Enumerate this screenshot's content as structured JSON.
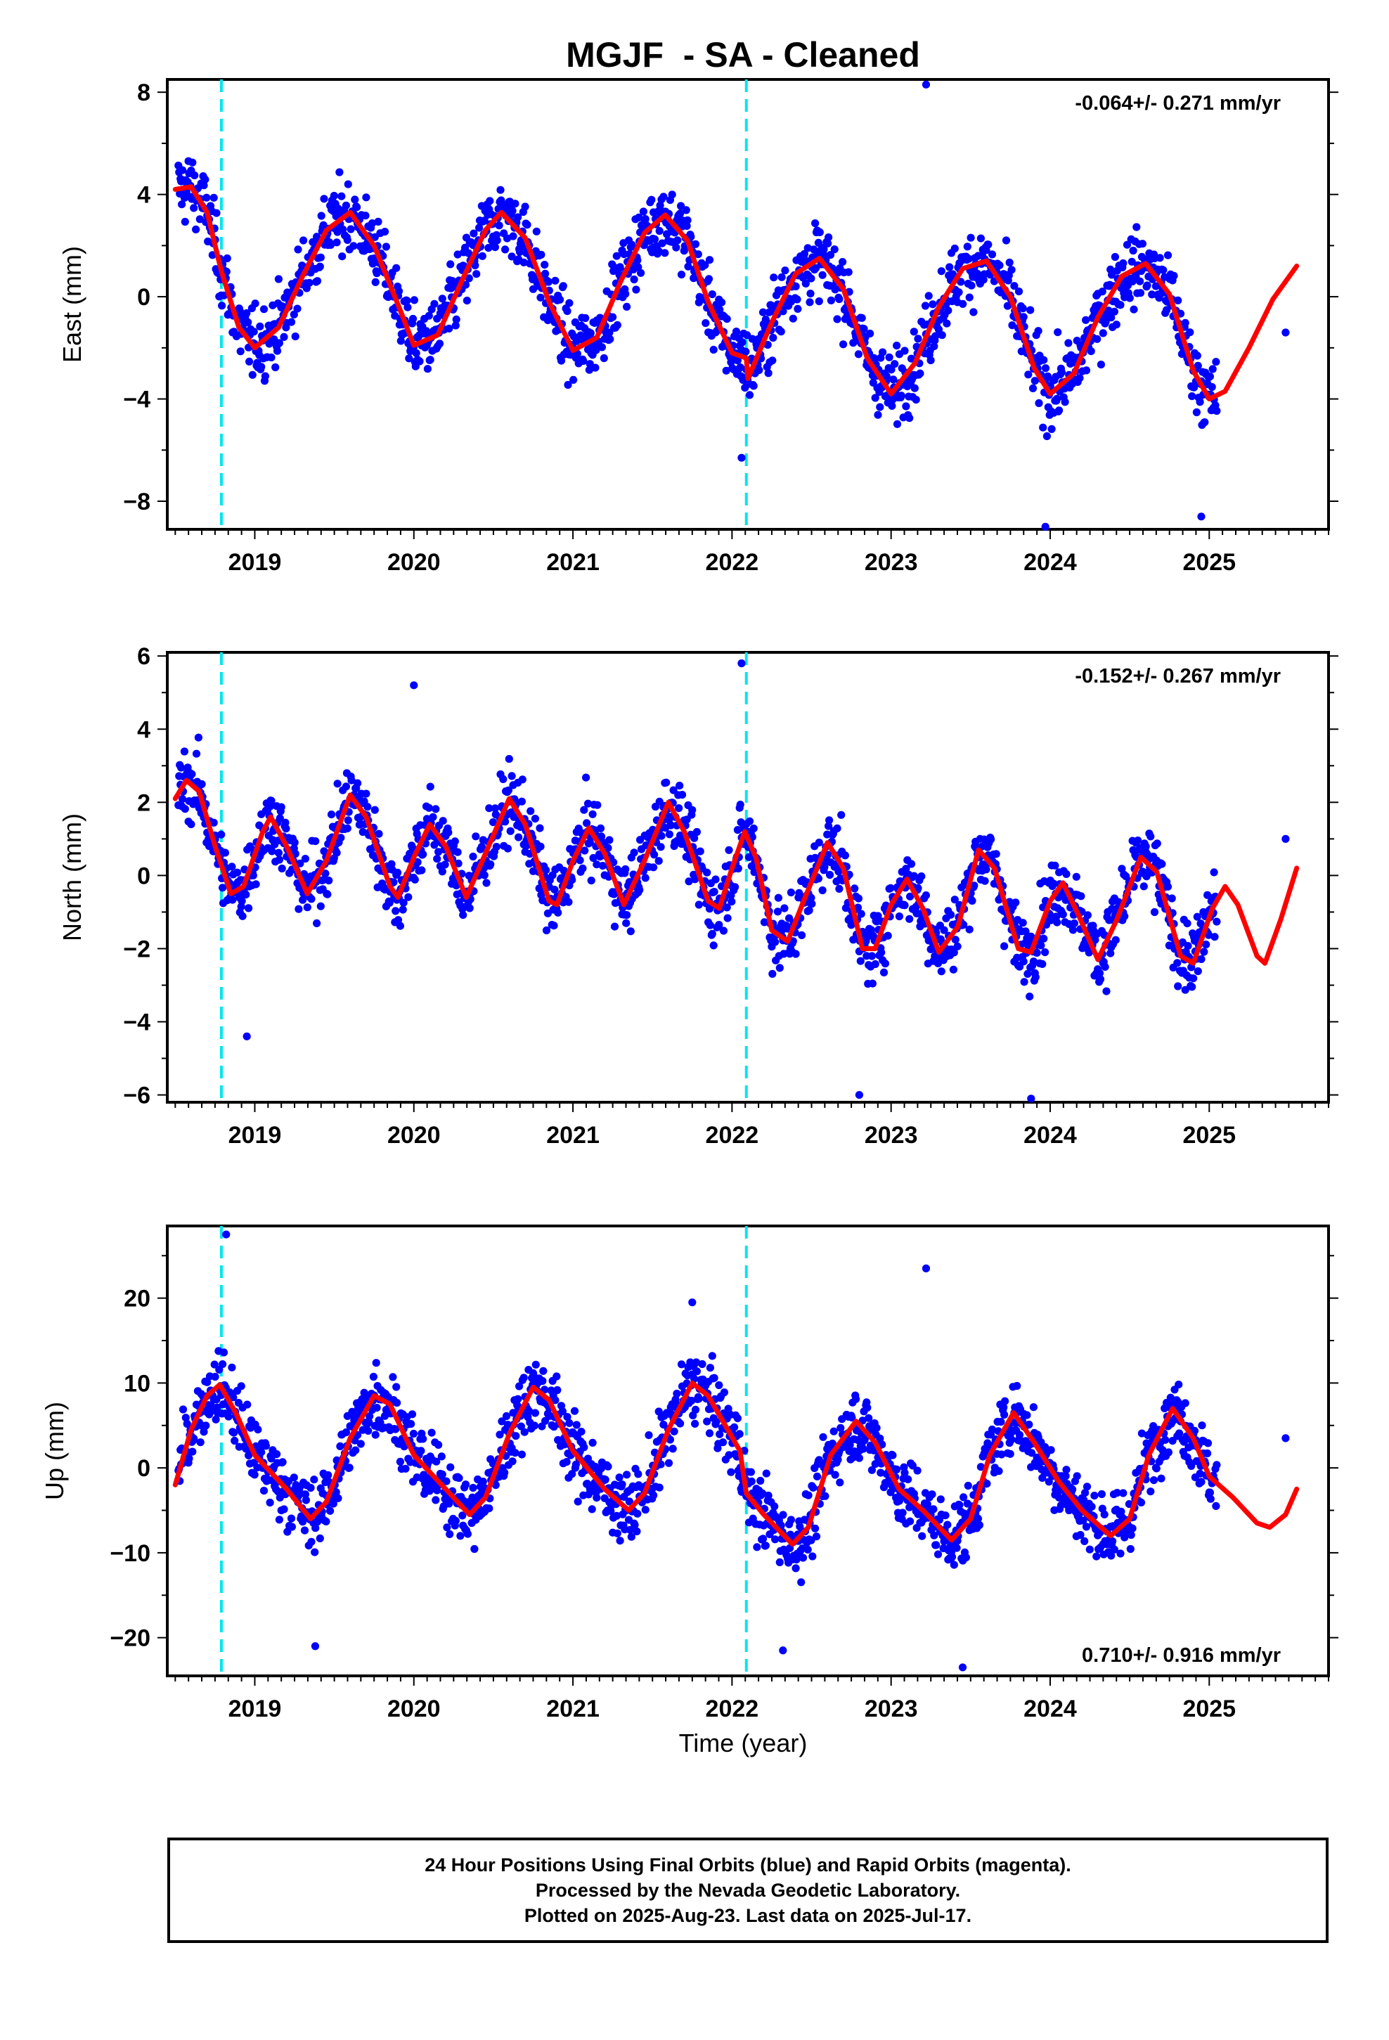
{
  "chart_data": {
    "type": "scatter",
    "title": "MGJF  - SA - Cleaned",
    "xlabel": "Time (year)",
    "xlim": [
      2018.45,
      2025.75
    ],
    "xticks": [
      "2019",
      "2020",
      "2021",
      "2022",
      "2023",
      "2024",
      "2025"
    ],
    "steps": [
      2018.79,
      2022.09
    ],
    "colors": {
      "points": "#0000ff",
      "fit": "#ff0000",
      "steps": "#00e5ee",
      "rapid": "#ff00ff"
    },
    "panels": [
      {
        "name": "east",
        "ylabel": "East (mm)",
        "ylim": [
          -9.1,
          8.5
        ],
        "yticks": [
          -8,
          -4,
          0,
          4,
          8
        ],
        "rate_text": "-0.064+/- 0.271 mm/yr",
        "rate_position": "top-right",
        "fit_points": [
          [
            2018.5,
            4.2
          ],
          [
            2018.6,
            4.3
          ],
          [
            2018.7,
            3.3
          ],
          [
            2018.79,
            1.0
          ],
          [
            2018.9,
            -1.2
          ],
          [
            2019.0,
            -2.0
          ],
          [
            2019.15,
            -1.2
          ],
          [
            2019.3,
            0.8
          ],
          [
            2019.45,
            2.6
          ],
          [
            2019.6,
            3.3
          ],
          [
            2019.75,
            2.0
          ],
          [
            2019.9,
            -0.3
          ],
          [
            2020.0,
            -1.9
          ],
          [
            2020.15,
            -1.5
          ],
          [
            2020.3,
            0.6
          ],
          [
            2020.45,
            2.6
          ],
          [
            2020.55,
            3.3
          ],
          [
            2020.7,
            2.3
          ],
          [
            2020.85,
            -0.2
          ],
          [
            2021.0,
            -2.1
          ],
          [
            2021.15,
            -1.6
          ],
          [
            2021.3,
            0.6
          ],
          [
            2021.45,
            2.5
          ],
          [
            2021.58,
            3.2
          ],
          [
            2021.72,
            2.2
          ],
          [
            2021.85,
            -0.2
          ],
          [
            2022.0,
            -2.2
          ],
          [
            2022.09,
            -2.4
          ],
          [
            2022.1,
            -3.2
          ],
          [
            2022.25,
            -1.0
          ],
          [
            2022.4,
            0.9
          ],
          [
            2022.55,
            1.5
          ],
          [
            2022.7,
            0.3
          ],
          [
            2022.85,
            -2.4
          ],
          [
            2023.0,
            -3.8
          ],
          [
            2023.15,
            -2.6
          ],
          [
            2023.3,
            -0.4
          ],
          [
            2023.45,
            1.1
          ],
          [
            2023.6,
            1.4
          ],
          [
            2023.75,
            0.0
          ],
          [
            2023.9,
            -2.8
          ],
          [
            2024.0,
            -3.8
          ],
          [
            2024.15,
            -3.0
          ],
          [
            2024.3,
            -0.8
          ],
          [
            2024.45,
            0.8
          ],
          [
            2024.6,
            1.3
          ],
          [
            2024.75,
            0.1
          ],
          [
            2024.9,
            -2.9
          ],
          [
            2025.0,
            -4.0
          ],
          [
            2025.1,
            -3.7
          ],
          [
            2025.25,
            -2.0
          ],
          [
            2025.4,
            -0.1
          ],
          [
            2025.55,
            1.2
          ]
        ],
        "outliers": [
          [
            2023.22,
            8.3
          ],
          [
            2025.48,
            -1.4
          ],
          [
            2023.97,
            -9.0
          ],
          [
            2024.95,
            -8.6
          ],
          [
            2022.06,
            -6.3
          ]
        ]
      },
      {
        "name": "north",
        "ylabel": "North (mm)",
        "ylim": [
          -6.2,
          6.1
        ],
        "yticks": [
          -6,
          -4,
          -2,
          0,
          2,
          4,
          6
        ],
        "rate_text": "-0.152+/- 0.267 mm/yr",
        "rate_position": "top-right",
        "fit_points": [
          [
            2018.5,
            2.1
          ],
          [
            2018.57,
            2.6
          ],
          [
            2018.65,
            2.3
          ],
          [
            2018.75,
            0.8
          ],
          [
            2018.85,
            -0.5
          ],
          [
            2018.93,
            -0.3
          ],
          [
            2019.05,
            1.2
          ],
          [
            2019.1,
            1.6
          ],
          [
            2019.2,
            0.8
          ],
          [
            2019.33,
            -0.5
          ],
          [
            2019.45,
            0.4
          ],
          [
            2019.6,
            2.2
          ],
          [
            2019.7,
            1.6
          ],
          [
            2019.85,
            -0.3
          ],
          [
            2019.9,
            -0.6
          ],
          [
            2020.0,
            0.5
          ],
          [
            2020.1,
            1.4
          ],
          [
            2020.2,
            0.8
          ],
          [
            2020.33,
            -0.6
          ],
          [
            2020.45,
            0.6
          ],
          [
            2020.6,
            2.1
          ],
          [
            2020.7,
            1.4
          ],
          [
            2020.85,
            -0.7
          ],
          [
            2020.9,
            -0.8
          ],
          [
            2021.0,
            0.4
          ],
          [
            2021.1,
            1.3
          ],
          [
            2021.2,
            0.6
          ],
          [
            2021.32,
            -0.8
          ],
          [
            2021.45,
            0.4
          ],
          [
            2021.6,
            2.0
          ],
          [
            2021.7,
            1.2
          ],
          [
            2021.85,
            -0.7
          ],
          [
            2021.92,
            -0.9
          ],
          [
            2022.0,
            0.2
          ],
          [
            2022.08,
            1.2
          ],
          [
            2022.15,
            0.5
          ],
          [
            2022.25,
            -1.5
          ],
          [
            2022.35,
            -1.8
          ],
          [
            2022.45,
            -0.7
          ],
          [
            2022.6,
            0.9
          ],
          [
            2022.7,
            0.2
          ],
          [
            2022.82,
            -2.0
          ],
          [
            2022.9,
            -2.0
          ],
          [
            2023.0,
            -0.8
          ],
          [
            2023.1,
            -0.1
          ],
          [
            2023.2,
            -0.9
          ],
          [
            2023.3,
            -2.1
          ],
          [
            2023.42,
            -1.4
          ],
          [
            2023.55,
            0.7
          ],
          [
            2023.65,
            0.2
          ],
          [
            2023.8,
            -2.0
          ],
          [
            2023.88,
            -2.1
          ],
          [
            2024.0,
            -0.7
          ],
          [
            2024.08,
            -0.2
          ],
          [
            2024.18,
            -1.1
          ],
          [
            2024.3,
            -2.3
          ],
          [
            2024.42,
            -1.2
          ],
          [
            2024.57,
            0.5
          ],
          [
            2024.67,
            0.1
          ],
          [
            2024.82,
            -2.2
          ],
          [
            2024.9,
            -2.4
          ],
          [
            2025.02,
            -0.9
          ],
          [
            2025.1,
            -0.3
          ],
          [
            2025.18,
            -0.8
          ],
          [
            2025.3,
            -2.2
          ],
          [
            2025.35,
            -2.4
          ],
          [
            2025.45,
            -1.2
          ],
          [
            2025.55,
            0.2
          ]
        ],
        "outliers": [
          [
            2022.06,
            5.8
          ],
          [
            2020.0,
            5.2
          ],
          [
            2025.48,
            1.0
          ],
          [
            2023.88,
            -6.1
          ],
          [
            2022.8,
            -6.0
          ],
          [
            2018.95,
            -4.4
          ]
        ]
      },
      {
        "name": "up",
        "ylabel": "Up (mm)",
        "ylim": [
          -24.5,
          28.5
        ],
        "yticks": [
          -20,
          -10,
          0,
          10,
          20
        ],
        "rate_text": "0.710+/- 0.916 mm/yr",
        "rate_position": "bottom-right",
        "fit_points": [
          [
            2018.5,
            -2.0
          ],
          [
            2018.6,
            4.5
          ],
          [
            2018.7,
            8.5
          ],
          [
            2018.78,
            9.8
          ],
          [
            2018.88,
            6.5
          ],
          [
            2019.0,
            1.5
          ],
          [
            2019.2,
            -2.5
          ],
          [
            2019.35,
            -6.0
          ],
          [
            2019.45,
            -4.0
          ],
          [
            2019.6,
            3.5
          ],
          [
            2019.75,
            8.5
          ],
          [
            2019.85,
            7.5
          ],
          [
            2020.0,
            1.5
          ],
          [
            2020.2,
            -2.5
          ],
          [
            2020.35,
            -5.5
          ],
          [
            2020.45,
            -3.5
          ],
          [
            2020.6,
            4.0
          ],
          [
            2020.75,
            9.5
          ],
          [
            2020.85,
            8.0
          ],
          [
            2021.0,
            2.0
          ],
          [
            2021.2,
            -2.5
          ],
          [
            2021.35,
            -5.0
          ],
          [
            2021.45,
            -3.0
          ],
          [
            2021.6,
            4.5
          ],
          [
            2021.75,
            10.0
          ],
          [
            2021.85,
            8.5
          ],
          [
            2022.05,
            2.0
          ],
          [
            2022.09,
            -3.0
          ],
          [
            2022.2,
            -5.5
          ],
          [
            2022.38,
            -9.0
          ],
          [
            2022.48,
            -7.0
          ],
          [
            2022.62,
            1.5
          ],
          [
            2022.78,
            5.5
          ],
          [
            2022.9,
            3.0
          ],
          [
            2023.05,
            -2.5
          ],
          [
            2023.2,
            -5.0
          ],
          [
            2023.38,
            -8.5
          ],
          [
            2023.5,
            -6.0
          ],
          [
            2023.62,
            1.5
          ],
          [
            2023.77,
            6.5
          ],
          [
            2023.9,
            3.0
          ],
          [
            2024.05,
            -1.5
          ],
          [
            2024.2,
            -5.0
          ],
          [
            2024.38,
            -8.0
          ],
          [
            2024.5,
            -6.0
          ],
          [
            2024.62,
            1.5
          ],
          [
            2024.77,
            7.0
          ],
          [
            2024.9,
            3.5
          ],
          [
            2025.0,
            -1.0
          ],
          [
            2025.15,
            -3.5
          ],
          [
            2025.3,
            -6.5
          ],
          [
            2025.38,
            -7.0
          ],
          [
            2025.48,
            -5.5
          ],
          [
            2025.55,
            -2.5
          ]
        ],
        "outliers": [
          [
            2018.82,
            27.5
          ],
          [
            2021.75,
            19.5
          ],
          [
            2023.22,
            23.5
          ],
          [
            2023.45,
            -23.5
          ],
          [
            2019.38,
            -21.0
          ],
          [
            2022.32,
            -21.5
          ],
          [
            2025.48,
            3.5
          ]
        ]
      }
    ]
  },
  "footer": {
    "line1": "24 Hour Positions Using Final Orbits (blue) and Rapid Orbits (magenta).",
    "line2": "Processed by the Nevada Geodetic Laboratory.",
    "line3": "Plotted on 2025-Aug-23. Last data on 2025-Jul-17."
  }
}
